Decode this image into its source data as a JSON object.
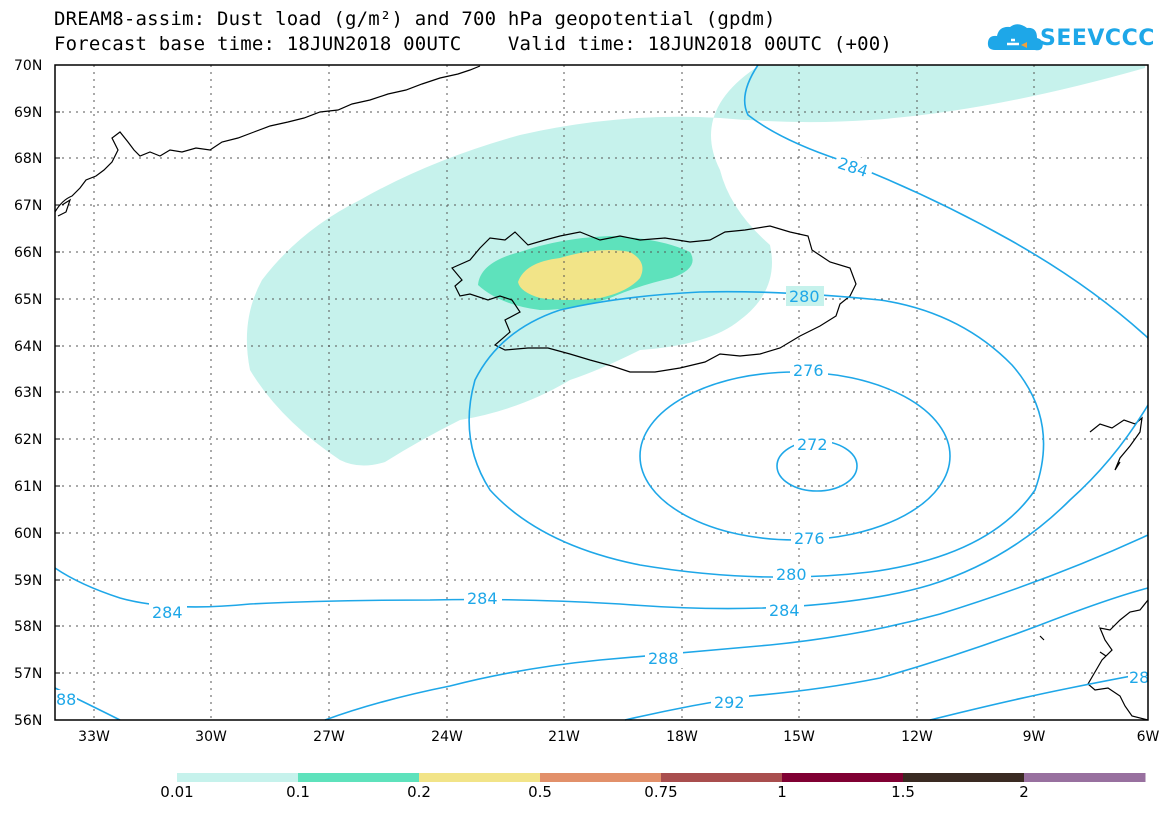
{
  "header": {
    "title_line1": "DREAM8-assim: Dust load (g/m²) and 700 hPa geopotential (gpdm)",
    "title_line2": "Forecast base time: 18JUN2018 00UTC    Valid time: 18JUN2018 00UTC (+00)"
  },
  "logo": {
    "text": "SEEVCCC",
    "icon": "cloud-logo-icon",
    "color": "#1ea7e8"
  },
  "map": {
    "lat_labels": [
      "70N",
      "69N",
      "68N",
      "67N",
      "66N",
      "65N",
      "64N",
      "63N",
      "62N",
      "61N",
      "60N",
      "59N",
      "58N",
      "57N",
      "56N"
    ],
    "lon_labels": [
      "33W",
      "30W",
      "27W",
      "24W",
      "21W",
      "18W",
      "15W",
      "12W",
      "9W",
      "6W"
    ],
    "contour_color": "#1ea7e8",
    "contour_labels": [
      "284",
      "280",
      "276",
      "272",
      "276",
      "280",
      "284",
      "284",
      "284",
      "288",
      "292",
      "88",
      "28"
    ]
  },
  "colorbar": {
    "labels": [
      "0.01",
      "0.1",
      "0.2",
      "0.5",
      "0.75",
      "1",
      "1.5",
      "2"
    ],
    "colors": [
      "#c6f2ec",
      "#5ee2bc",
      "#f2e488",
      "#e2906a",
      "#a94e4e",
      "#800033",
      "#3a2a22",
      "#98709f"
    ]
  }
}
